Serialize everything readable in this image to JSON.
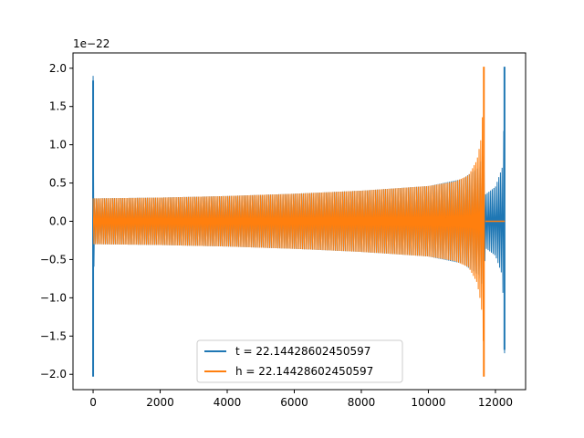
{
  "chart_data": {
    "type": "line",
    "title": "",
    "xlabel": "",
    "ylabel": "",
    "y_offset_label": "1e−22",
    "xlim": [
      -600,
      12900
    ],
    "ylim": [
      -2.2,
      2.2
    ],
    "x_ticks": [
      0,
      2000,
      4000,
      6000,
      8000,
      10000,
      12000
    ],
    "x_tick_labels": [
      "0",
      "2000",
      "4000",
      "6000",
      "8000",
      "10000",
      "12000"
    ],
    "y_ticks": [
      -2.0,
      -1.5,
      -1.0,
      -0.5,
      0.0,
      0.5,
      1.0,
      1.5,
      2.0
    ],
    "y_tick_labels": [
      "−2.0",
      "−1.5",
      "−1.0",
      "−0.5",
      "0.0",
      "0.5",
      "1.0",
      "1.5",
      "2.0"
    ],
    "grid": false,
    "legend_position": "lower-center",
    "series": [
      {
        "name": "t = 22.14428602450597",
        "color": "#1f77b4",
        "envelope": {
          "x": [
            0,
            30,
            200,
            2000,
            4000,
            6000,
            8000,
            10000,
            11000,
            11500,
            11650,
            11700,
            12000,
            12200,
            12250,
            12280
          ],
          "amp": [
            1.9,
            0.3,
            0.3,
            0.31,
            0.33,
            0.36,
            0.4,
            0.46,
            0.55,
            0.7,
            0.9,
            0.35,
            0.45,
            0.7,
            1.2,
            1.9
          ]
        },
        "spikes": [
          {
            "x": 0,
            "min": -2.03,
            "max": 1.84
          },
          {
            "x": 12270,
            "min": -1.68,
            "max": 2.02
          }
        ]
      },
      {
        "name": "h = 22.14428602450597",
        "color": "#ff7f0e",
        "envelope": {
          "x": [
            0,
            50,
            200,
            2000,
            4000,
            6000,
            8000,
            10000,
            10800,
            11200,
            11450,
            11580,
            11640,
            11660
          ],
          "amp": [
            0.3,
            0.3,
            0.3,
            0.31,
            0.33,
            0.36,
            0.4,
            0.46,
            0.52,
            0.6,
            0.8,
            1.1,
            1.6,
            2.0
          ]
        },
        "spikes": [
          {
            "x": 11655,
            "min": -2.03,
            "max": 2.02
          }
        ],
        "flat_segment": {
          "x_start": 11700,
          "x_end": 12280,
          "y": 0.0
        }
      }
    ]
  }
}
